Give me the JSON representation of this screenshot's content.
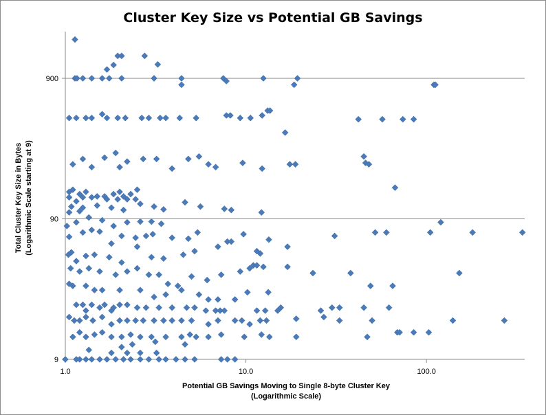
{
  "chart_data": {
    "type": "scatter",
    "title": "Cluster Key Size vs Potential GB Savings",
    "xlabel": [
      "Potential GB Savings  Moving to Single 8-byte Cluster Key",
      "(Logarithmic Scale)"
    ],
    "ylabel": [
      "Total Cluster Key Size  in Bytes",
      "(Logarithmic Scale  starting at 9)"
    ],
    "x_scale": "log",
    "y_scale": "log",
    "xlim": [
      1,
      350
    ],
    "ylim": [
      9,
      2200
    ],
    "x_ticks": [
      {
        "value": 1,
        "label": "1.0"
      },
      {
        "value": 10,
        "label": "10.0"
      },
      {
        "value": 100,
        "label": "100.0"
      }
    ],
    "y_ticks": [
      {
        "value": 9,
        "label": "9"
      },
      {
        "value": 90,
        "label": "90"
      },
      {
        "value": 900,
        "label": "900"
      }
    ],
    "grid": "horizontal",
    "legend": "none",
    "marker": "diamond",
    "marker_color": "#4a7ab8",
    "series": [
      {
        "points": [
          [
            1.13,
            1700
          ],
          [
            1.13,
            900
          ],
          [
            1.16,
            900
          ],
          [
            1.25,
            900
          ],
          [
            1.4,
            900
          ],
          [
            1.6,
            900
          ],
          [
            1.75,
            900
          ],
          [
            2.05,
            900
          ],
          [
            3.1,
            900
          ],
          [
            4.4,
            900
          ],
          [
            7.5,
            900
          ],
          [
            12.5,
            900
          ],
          [
            19.3,
            900
          ],
          [
            1.7,
            1040
          ],
          [
            1.95,
            1300
          ],
          [
            2.05,
            1300
          ],
          [
            2.75,
            1300
          ],
          [
            1.85,
            1120
          ],
          [
            3.25,
            1130
          ],
          [
            4.4,
            810
          ],
          [
            7.8,
            860
          ],
          [
            18.5,
            810
          ],
          [
            110,
            810
          ],
          [
            112,
            810
          ],
          [
            1.05,
            470
          ],
          [
            1.15,
            470
          ],
          [
            1.3,
            470
          ],
          [
            1.4,
            470
          ],
          [
            1.6,
            500
          ],
          [
            1.7,
            470
          ],
          [
            1.95,
            470
          ],
          [
            2.15,
            470
          ],
          [
            2.65,
            470
          ],
          [
            2.9,
            470
          ],
          [
            3.35,
            470
          ],
          [
            3.6,
            470
          ],
          [
            4.3,
            470
          ],
          [
            5.3,
            470
          ],
          [
            7.8,
            490
          ],
          [
            8.2,
            490
          ],
          [
            9.3,
            470
          ],
          [
            10.6,
            470
          ],
          [
            12.3,
            490
          ],
          [
            13.2,
            530
          ],
          [
            13.6,
            530
          ],
          [
            16.5,
            370
          ],
          [
            42,
            460
          ],
          [
            57,
            460
          ],
          [
            74,
            460
          ],
          [
            85,
            460
          ],
          [
            1.1,
            220
          ],
          [
            1.25,
            240
          ],
          [
            1.4,
            210
          ],
          [
            1.65,
            245
          ],
          [
            1.9,
            265
          ],
          [
            2.0,
            210
          ],
          [
            2.2,
            230
          ],
          [
            2.7,
            240
          ],
          [
            3.2,
            240
          ],
          [
            3.9,
            205
          ],
          [
            4.8,
            240
          ],
          [
            5.5,
            250
          ],
          [
            6.2,
            220
          ],
          [
            6.8,
            210
          ],
          [
            9.6,
            225
          ],
          [
            12.3,
            205
          ],
          [
            17.5,
            220
          ],
          [
            18.8,
            220
          ],
          [
            45,
            250
          ],
          [
            46,
            225
          ],
          [
            48,
            220
          ],
          [
            67,
            150
          ],
          [
            1.05,
            140
          ],
          [
            1.1,
            145
          ],
          [
            1.2,
            135
          ],
          [
            1.3,
            140
          ],
          [
            1.5,
            130
          ],
          [
            1.65,
            130
          ],
          [
            1.85,
            135
          ],
          [
            2.0,
            140
          ],
          [
            2.1,
            130
          ],
          [
            2.3,
            135
          ],
          [
            2.5,
            145
          ],
          [
            1.05,
            128
          ],
          [
            1.15,
            120
          ],
          [
            1.25,
            128
          ],
          [
            1.4,
            128
          ],
          [
            1.7,
            124
          ],
          [
            1.95,
            124
          ],
          [
            2.2,
            124
          ],
          [
            2.45,
            124
          ],
          [
            1.08,
            110
          ],
          [
            1.25,
            108
          ],
          [
            1.5,
            112
          ],
          [
            1.8,
            108
          ],
          [
            2.1,
            104
          ],
          [
            2.6,
            115
          ],
          [
            3.1,
            110
          ],
          [
            3.5,
            105
          ],
          [
            4.6,
            118
          ],
          [
            5.6,
            110
          ],
          [
            7.6,
            106
          ],
          [
            8.3,
            104
          ],
          [
            12.2,
            100
          ],
          [
            1.05,
            100
          ],
          [
            1.2,
            102
          ],
          [
            1.02,
            80
          ],
          [
            1.15,
            85
          ],
          [
            1.35,
            92
          ],
          [
            1.6,
            88
          ],
          [
            1.85,
            80
          ],
          [
            2.2,
            85
          ],
          [
            2.6,
            86
          ],
          [
            3.0,
            86
          ],
          [
            3.4,
            83
          ],
          [
            1.05,
            67
          ],
          [
            1.25,
            72
          ],
          [
            1.4,
            75
          ],
          [
            1.55,
            73
          ],
          [
            1.8,
            60
          ],
          [
            2.05,
            68
          ],
          [
            2.45,
            66
          ],
          [
            2.8,
            68
          ],
          [
            3.05,
            70
          ],
          [
            3.9,
            66
          ],
          [
            4.8,
            65
          ],
          [
            5.4,
            72
          ],
          [
            9.7,
            70
          ],
          [
            13.4,
            64
          ],
          [
            17,
            57
          ],
          [
            31,
            68
          ],
          [
            52,
            72
          ],
          [
            60,
            72
          ],
          [
            105,
            72
          ],
          [
            120,
            85
          ],
          [
            180,
            72
          ],
          [
            340,
            72
          ],
          [
            1.04,
            50
          ],
          [
            1.08,
            52
          ],
          [
            1.15,
            45
          ],
          [
            1.3,
            49
          ],
          [
            1.45,
            50
          ],
          [
            1.75,
            48
          ],
          [
            2.05,
            44
          ],
          [
            2.5,
            57
          ],
          [
            3.0,
            48
          ],
          [
            3.5,
            47
          ],
          [
            4.5,
            50
          ],
          [
            5.2,
            53
          ],
          [
            7.0,
            57
          ],
          [
            11.5,
            53
          ],
          [
            12.0,
            51
          ],
          [
            7.9,
            62
          ],
          [
            8.3,
            62
          ],
          [
            1.07,
            40
          ],
          [
            1.2,
            38
          ],
          [
            1.35,
            40
          ],
          [
            1.55,
            38
          ],
          [
            1.9,
            36
          ],
          [
            2.2,
            38
          ],
          [
            2.5,
            40
          ],
          [
            2.9,
            36
          ],
          [
            3.3,
            36
          ],
          [
            3.7,
            31
          ],
          [
            4.2,
            30
          ],
          [
            5.0,
            35
          ],
          [
            6.1,
            33
          ],
          [
            7.3,
            36
          ],
          [
            9.3,
            38
          ],
          [
            11.0,
            42
          ],
          [
            11.5,
            42
          ],
          [
            10.5,
            40
          ],
          [
            12.5,
            41
          ],
          [
            17,
            41
          ],
          [
            23.5,
            37
          ],
          [
            38,
            37
          ],
          [
            49,
            30
          ],
          [
            65,
            30
          ],
          [
            152,
            37
          ],
          [
            1.05,
            31
          ],
          [
            1.1,
            30
          ],
          [
            1.3,
            30
          ],
          [
            1.45,
            28
          ],
          [
            1.6,
            28
          ],
          [
            2.0,
            28
          ],
          [
            2.6,
            28
          ],
          [
            3.1,
            25
          ],
          [
            3.6,
            26
          ],
          [
            4.4,
            28
          ],
          [
            5.5,
            26
          ],
          [
            6.2,
            24
          ],
          [
            7.0,
            24
          ],
          [
            8.7,
            24
          ],
          [
            10.2,
            27
          ],
          [
            13.3,
            27
          ],
          [
            1.15,
            22
          ],
          [
            1.25,
            22
          ],
          [
            1.4,
            22
          ],
          [
            1.55,
            21
          ],
          [
            1.65,
            22
          ],
          [
            1.85,
            21
          ],
          [
            2.0,
            22
          ],
          [
            2.2,
            22
          ],
          [
            2.5,
            21
          ],
          [
            2.8,
            21
          ],
          [
            3.3,
            21
          ],
          [
            3.9,
            21
          ],
          [
            4.7,
            21
          ],
          [
            5.2,
            21
          ],
          [
            6.0,
            20
          ],
          [
            6.8,
            20
          ],
          [
            7.2,
            20
          ],
          [
            7.6,
            20
          ],
          [
            11.5,
            20
          ],
          [
            12.8,
            20
          ],
          [
            15.0,
            20
          ],
          [
            15.6,
            21
          ],
          [
            26,
            20
          ],
          [
            30,
            21
          ],
          [
            33,
            21
          ],
          [
            45,
            21
          ],
          [
            62,
            21
          ],
          [
            1.3,
            20
          ],
          [
            1.8,
            20
          ],
          [
            1.05,
            18
          ],
          [
            1.12,
            17
          ],
          [
            1.2,
            17
          ],
          [
            1.3,
            18
          ],
          [
            1.42,
            17
          ],
          [
            1.6,
            18
          ],
          [
            1.8,
            16
          ],
          [
            2.0,
            17
          ],
          [
            2.2,
            17
          ],
          [
            2.45,
            17
          ],
          [
            2.7,
            17
          ],
          [
            3.1,
            17
          ],
          [
            3.5,
            17
          ],
          [
            3.9,
            17
          ],
          [
            4.4,
            17
          ],
          [
            5.0,
            17
          ],
          [
            6.2,
            16
          ],
          [
            7.0,
            17
          ],
          [
            8.7,
            17
          ],
          [
            9.5,
            17
          ],
          [
            10.5,
            16
          ],
          [
            12.0,
            17
          ],
          [
            13.0,
            17
          ],
          [
            19,
            17.5
          ],
          [
            27,
            18
          ],
          [
            33,
            17
          ],
          [
            50,
            17
          ],
          [
            140,
            17
          ],
          [
            270,
            17
          ],
          [
            1.1,
            13
          ],
          [
            1.2,
            14
          ],
          [
            1.3,
            13
          ],
          [
            1.45,
            13.5
          ],
          [
            1.6,
            14
          ],
          [
            1.8,
            13
          ],
          [
            2.05,
            13
          ],
          [
            2.3,
            13.5
          ],
          [
            2.6,
            13
          ],
          [
            3.0,
            13
          ],
          [
            3.6,
            13
          ],
          [
            4.4,
            13
          ],
          [
            4.9,
            13.5
          ],
          [
            5.3,
            13
          ],
          [
            6.2,
            13
          ],
          [
            7.3,
            13.5
          ],
          [
            9.8,
            13
          ],
          [
            12.2,
            13.5
          ],
          [
            13.5,
            13
          ],
          [
            19,
            13
          ],
          [
            47,
            13
          ],
          [
            69,
            14
          ],
          [
            71,
            14
          ],
          [
            85,
            14
          ],
          [
            103,
            14
          ],
          [
            1.0,
            9
          ],
          [
            1.15,
            9
          ],
          [
            1.2,
            9
          ],
          [
            1.3,
            9
          ],
          [
            1.4,
            9
          ],
          [
            1.55,
            9
          ],
          [
            1.7,
            9
          ],
          [
            1.9,
            9
          ],
          [
            2.1,
            9
          ],
          [
            2.3,
            9
          ],
          [
            2.6,
            9
          ],
          [
            2.9,
            9
          ],
          [
            3.3,
            9
          ],
          [
            3.6,
            9
          ],
          [
            4.1,
            9
          ],
          [
            4.6,
            9
          ],
          [
            5.2,
            9
          ],
          [
            7.3,
            9
          ],
          [
            7.9,
            9
          ],
          [
            8.7,
            9
          ],
          [
            1.8,
            10
          ],
          [
            2.2,
            10
          ],
          [
            2.6,
            10
          ],
          [
            3.2,
            10
          ],
          [
            1.35,
            10.5
          ],
          [
            2.05,
            11
          ],
          [
            2.35,
            11.5
          ],
          [
            3.15,
            12
          ],
          [
            4.6,
            11.5
          ]
        ]
      }
    ]
  }
}
